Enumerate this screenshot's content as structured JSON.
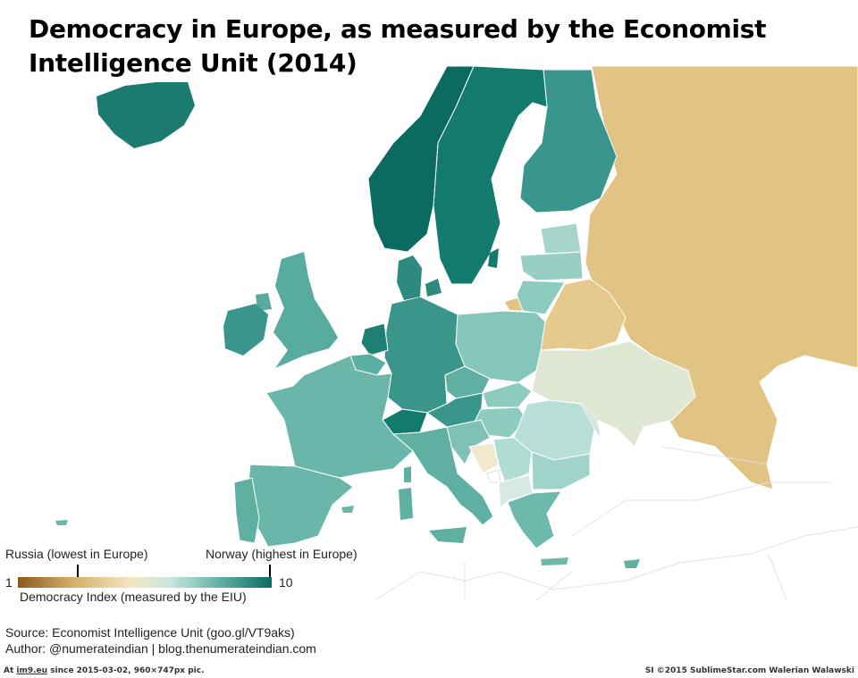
{
  "title": "Democracy in Europe, as measured by the Economist Intelligence Unit (2014)",
  "legend": {
    "min_label": "1",
    "max_label": "10",
    "low_note": "Russia (lowest in Europe)",
    "high_note": "Norway (highest in Europe)",
    "caption": "Democracy Index (measured by the EIU)",
    "colors": [
      "#8c5a1e",
      "#d6b06a",
      "#f2e7c5",
      "#c9e6df",
      "#5fb0a3",
      "#0b6b60"
    ]
  },
  "source": "Source: Economist Intelligence Unit (goo.gl/VT9aks)",
  "author": "Author: @numerateindian | blog.thenumerateindian.com",
  "footer": {
    "left_prefix": "At ",
    "left_site": "im9.eu",
    "left_suffix": " since 2015-03-02, 960×747px pic.",
    "right": "SI ©2015 SublimeStar.com Walerian Walawski"
  }
}
